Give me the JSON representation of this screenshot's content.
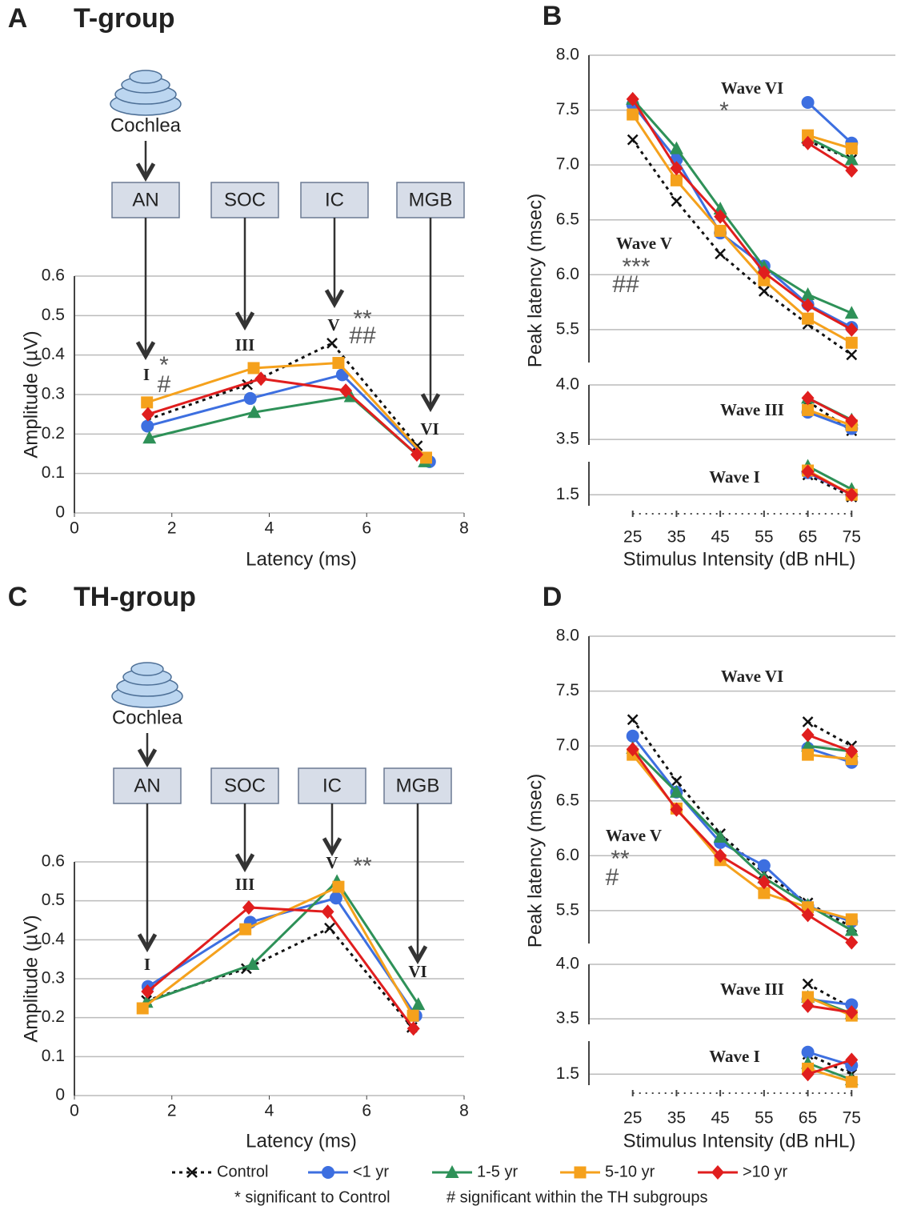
{
  "legend": [
    {
      "name": "Control",
      "color": "#111111",
      "marker": "x",
      "dash": true
    },
    {
      "name": "<1 yr",
      "color": "#3d6fe0",
      "marker": "circle"
    },
    {
      "name": "1-5 yr",
      "color": "#2e9158",
      "marker": "triangle"
    },
    {
      "name": "5-10 yr",
      "color": "#f5a11c",
      "marker": "square"
    },
    {
      "name": ">10 yr",
      "color": "#e01e1e",
      "marker": "diamond"
    }
  ],
  "footnotes": [
    "* significant to Control",
    "# significant within the TH subgroups"
  ],
  "chart_data": [
    {
      "type": "line",
      "label": "A",
      "title": "T-group",
      "xlabel": "Latency (ms)",
      "ylabel": "Amplitude (µV)",
      "xlim": [
        0,
        8
      ],
      "xticks": [
        0,
        2,
        4,
        6,
        8
      ],
      "ylim": [
        0,
        0.6
      ],
      "yticks": [
        0,
        0.1,
        0.2,
        0.3,
        0.4,
        0.5,
        0.6
      ],
      "grid": true,
      "diagram": {
        "source": "Cochlea",
        "stations": [
          "AN",
          "SOC",
          "IC",
          "MGB"
        ]
      },
      "annotations": [
        "I",
        "III",
        "V",
        "VI",
        "*",
        "#",
        "**",
        "##"
      ],
      "series": [
        {
          "x": [
            1.51,
            3.55,
            5.29,
            7.04
          ],
          "values": [
            0.237,
            0.325,
            0.43,
            0.17
          ]
        },
        {
          "x": [
            1.5,
            3.61,
            5.5,
            7.29
          ],
          "values": [
            0.22,
            0.29,
            0.35,
            0.13
          ]
        },
        {
          "x": [
            1.54,
            3.69,
            5.67,
            7.19
          ],
          "values": [
            0.19,
            0.255,
            0.295,
            0.13
          ]
        },
        {
          "x": [
            1.49,
            3.68,
            5.42,
            7.22
          ],
          "values": [
            0.28,
            0.367,
            0.38,
            0.14
          ]
        },
        {
          "x": [
            1.51,
            3.83,
            5.57,
            7.03
          ],
          "values": [
            0.25,
            0.34,
            0.31,
            0.148
          ]
        }
      ]
    },
    {
      "type": "broken-line",
      "label": "B",
      "xlabel": "Stimulus Intensity (dB nHL)",
      "ylabel": "Peak latency (msec)",
      "xlim": [
        15,
        85
      ],
      "xticks": [
        25,
        35,
        45,
        55,
        65,
        75
      ],
      "grid": true,
      "segments": [
        {
          "ylim": [
            5.2,
            8.0
          ],
          "yticks": [
            5.5,
            {
              "value": 6,
              "label": "6.0"
            },
            6.5,
            {
              "value": 7,
              "label": "7.0"
            },
            7.5,
            {
              "value": 8,
              "label": "8.0"
            }
          ]
        },
        {
          "ylim": [
            3.45,
            4.0
          ],
          "yticks": [
            3.5,
            {
              "value": 4,
              "label": "4.0"
            }
          ]
        },
        {
          "ylim": [
            1.4,
            1.8
          ],
          "yticks": [
            1.5
          ]
        }
      ],
      "annotations": [
        "*",
        "***",
        "##"
      ],
      "waves": [
        {
          "label": "Wave V",
          "segment": 0,
          "x": [
            25,
            35,
            45,
            55,
            65,
            75
          ],
          "series": [
            {
              "values": [
                7.23,
                6.67,
                6.19,
                5.85,
                5.55,
                5.27
              ]
            },
            {
              "values": [
                7.55,
                7.05,
                6.38,
                6.08,
                5.73,
                5.52
              ]
            },
            {
              "values": [
                7.6,
                7.15,
                6.6,
                6.07,
                5.82,
                5.65
              ]
            },
            {
              "values": [
                7.46,
                6.86,
                6.4,
                5.95,
                5.6,
                5.38
              ]
            },
            {
              "values": [
                7.6,
                6.97,
                6.53,
                6.02,
                5.72,
                5.5
              ]
            }
          ]
        },
        {
          "label": "Wave VI",
          "segment": 0,
          "x": [
            65,
            75
          ],
          "series": [
            {
              "values": [
                7.22,
                7.05
              ]
            },
            {
              "values": [
                7.57,
                7.2
              ]
            },
            {
              "values": [
                7.25,
                7.05
              ]
            },
            {
              "values": [
                7.27,
                7.15
              ]
            },
            {
              "values": [
                7.2,
                6.95
              ]
            }
          ]
        },
        {
          "label": "Wave III",
          "segment": 1,
          "x": [
            65,
            75
          ],
          "series": [
            {
              "values": [
                3.85,
                3.58
              ]
            },
            {
              "values": [
                3.75,
                3.6
              ]
            },
            {
              "values": [
                3.88,
                3.68
              ]
            },
            {
              "values": [
                3.77,
                3.63
              ]
            },
            {
              "values": [
                3.88,
                3.67
              ]
            }
          ]
        },
        {
          "label": "Wave I",
          "segment": 2,
          "x": [
            65,
            75
          ],
          "series": [
            {
              "values": [
                1.68,
                1.48
              ]
            },
            {
              "values": [
                1.7,
                1.5
              ]
            },
            {
              "values": [
                1.76,
                1.55
              ]
            },
            {
              "values": [
                1.72,
                1.5
              ]
            },
            {
              "values": [
                1.71,
                1.5
              ]
            }
          ]
        }
      ]
    },
    {
      "type": "line",
      "label": "C",
      "title": "TH-group",
      "xlabel": "Latency (ms)",
      "ylabel": "Amplitude (µV)",
      "xlim": [
        0,
        8
      ],
      "xticks": [
        0,
        2,
        4,
        6,
        8
      ],
      "ylim": [
        0,
        0.6
      ],
      "yticks": [
        0,
        0.1,
        0.2,
        0.3,
        0.4,
        0.5,
        0.6
      ],
      "grid": true,
      "diagram": {
        "source": "Cochlea",
        "stations": [
          "AN",
          "SOC",
          "IC",
          "MGB"
        ]
      },
      "annotations": [
        "I",
        "III",
        "V",
        "VI",
        "**"
      ],
      "series": [
        {
          "x": [
            1.48,
            3.53,
            5.24,
            6.93
          ],
          "values": [
            0.244,
            0.326,
            0.43,
            0.175
          ]
        },
        {
          "x": [
            1.51,
            3.61,
            5.37,
            7.01
          ],
          "values": [
            0.28,
            0.445,
            0.507,
            0.205
          ]
        },
        {
          "x": [
            1.48,
            3.66,
            5.39,
            7.06
          ],
          "values": [
            0.24,
            0.337,
            0.55,
            0.234
          ]
        },
        {
          "x": [
            1.4,
            3.51,
            5.42,
            6.95
          ],
          "values": [
            0.224,
            0.427,
            0.536,
            0.205
          ]
        },
        {
          "x": [
            1.5,
            3.58,
            5.2,
            6.96
          ],
          "values": [
            0.267,
            0.483,
            0.472,
            0.172
          ]
        }
      ]
    },
    {
      "type": "broken-line",
      "label": "D",
      "xlabel": "Stimulus Intensity (dB nHL)",
      "ylabel": "Peak latency (msec)",
      "xlim": [
        15,
        85
      ],
      "xticks": [
        25,
        35,
        45,
        55,
        65,
        75
      ],
      "grid": true,
      "segments": [
        {
          "ylim": [
            5.2,
            8.0
          ],
          "yticks": [
            5.5,
            {
              "value": 6,
              "label": "6.0"
            },
            6.5,
            {
              "value": 7,
              "label": "7.0"
            },
            7.5,
            {
              "value": 8,
              "label": "8.0"
            }
          ]
        },
        {
          "ylim": [
            3.45,
            4.0
          ],
          "yticks": [
            3.5,
            {
              "value": 4,
              "label": "4.0"
            }
          ]
        },
        {
          "ylim": [
            1.4,
            1.8
          ],
          "yticks": [
            1.5
          ]
        }
      ],
      "annotations": [
        "**",
        "#"
      ],
      "waves": [
        {
          "label": "Wave V",
          "segment": 0,
          "x": [
            25,
            35,
            45,
            55,
            65,
            75
          ],
          "series": [
            {
              "values": [
                7.24,
                6.68,
                6.2,
                5.84,
                5.57,
                5.35
              ]
            },
            {
              "values": [
                7.09,
                6.58,
                6.12,
                5.91,
                5.54,
                5.4
              ]
            },
            {
              "values": [
                6.98,
                6.58,
                6.17,
                5.8,
                5.55,
                5.32
              ]
            },
            {
              "values": [
                6.92,
                6.43,
                5.96,
                5.66,
                5.53,
                5.42
              ]
            },
            {
              "values": [
                6.97,
                6.42,
                6.0,
                5.76,
                5.46,
                5.21
              ]
            }
          ]
        },
        {
          "label": "Wave VI",
          "segment": 0,
          "x": [
            65,
            75
          ],
          "series": [
            {
              "values": [
                7.22,
                7.0
              ]
            },
            {
              "values": [
                6.98,
                6.85
              ]
            },
            {
              "values": [
                7.0,
                6.95
              ]
            },
            {
              "values": [
                6.92,
                6.88
              ]
            },
            {
              "values": [
                7.1,
                6.95
              ]
            }
          ]
        },
        {
          "label": "Wave III",
          "segment": 1,
          "x": [
            65,
            75
          ],
          "series": [
            {
              "values": [
                3.82,
                3.6
              ]
            },
            {
              "values": [
                3.68,
                3.63
              ]
            },
            {
              "values": [
                3.7,
                3.55
              ]
            },
            {
              "values": [
                3.7,
                3.53
              ]
            },
            {
              "values": [
                3.62,
                3.56
              ]
            }
          ]
        },
        {
          "label": "Wave I",
          "segment": 2,
          "x": [
            65,
            75
          ],
          "series": [
            {
              "values": [
                1.68,
                1.5
              ]
            },
            {
              "values": [
                1.7,
                1.58
              ]
            },
            {
              "values": [
                1.6,
                1.45
              ]
            },
            {
              "values": [
                1.55,
                1.43
              ]
            },
            {
              "values": [
                1.5,
                1.63
              ]
            }
          ]
        }
      ]
    }
  ]
}
